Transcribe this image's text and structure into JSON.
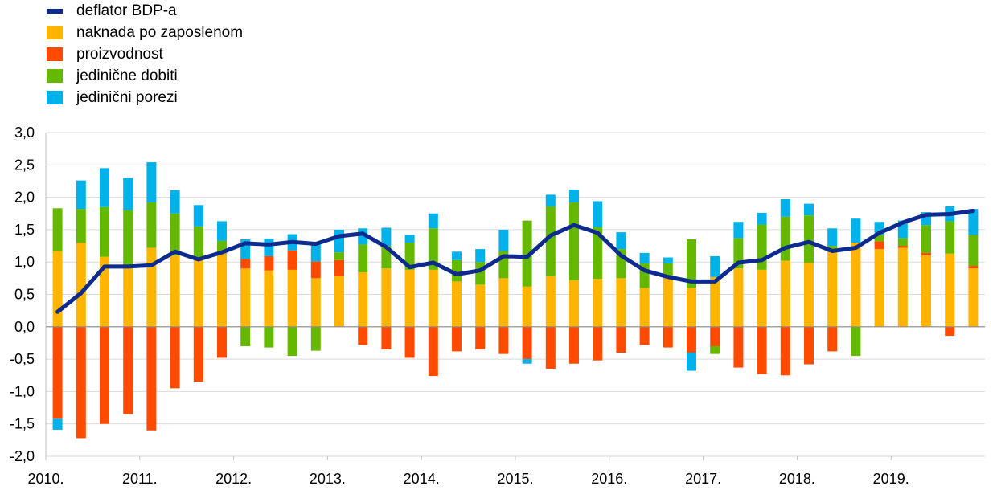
{
  "legend": {
    "items": [
      {
        "label": "deflator BDP-a",
        "color": "#0d2b8e",
        "kind": "line"
      },
      {
        "label": "naknada po zaposlenom",
        "color": "#ffb400",
        "kind": "bar"
      },
      {
        "label": "proizvodnost",
        "color": "#ff4b00",
        "kind": "bar"
      },
      {
        "label": "jedinične dobiti",
        "color": "#65b800",
        "kind": "bar"
      },
      {
        "label": "jedinični porezi",
        "color": "#00b1ea",
        "kind": "bar"
      }
    ]
  },
  "chart_data": {
    "type": "bar",
    "stacked": true,
    "title": "",
    "xlabel": "",
    "ylabel": "",
    "ylim": [
      -2.0,
      3.0
    ],
    "y_ticks": [
      "-2,0",
      "-1,5",
      "-1,0",
      "-0,5",
      "0,0",
      "0,5",
      "1,0",
      "1,5",
      "2,0",
      "2,5",
      "3,0"
    ],
    "x_tick_labels": [
      "2010.",
      "2011.",
      "2012.",
      "2013.",
      "2014.",
      "2015.",
      "2016.",
      "2017.",
      "2018.",
      "2019."
    ],
    "grid": true,
    "legend_position": "top-left",
    "categories": [
      "2010Q1",
      "2010Q2",
      "2010Q3",
      "2010Q4",
      "2011Q1",
      "2011Q2",
      "2011Q3",
      "2011Q4",
      "2012Q1",
      "2012Q2",
      "2012Q3",
      "2012Q4",
      "2013Q1",
      "2013Q2",
      "2013Q3",
      "2013Q4",
      "2014Q1",
      "2014Q2",
      "2014Q3",
      "2014Q4",
      "2015Q1",
      "2015Q2",
      "2015Q3",
      "2015Q4",
      "2016Q1",
      "2016Q2",
      "2016Q3",
      "2016Q4",
      "2017Q1",
      "2017Q2",
      "2017Q3",
      "2017Q4",
      "2018Q1",
      "2018Q2",
      "2018Q3",
      "2018Q4",
      "2019Q1",
      "2019Q2",
      "2019Q3",
      "2019Q4"
    ],
    "series": [
      {
        "name": "naknada po zaposlenom",
        "color": "#ffb400",
        "values": [
          1.17,
          1.3,
          1.08,
          0.9,
          1.22,
          1.1,
          1.03,
          1.13,
          0.9,
          0.87,
          0.88,
          0.75,
          0.78,
          0.84,
          0.9,
          0.88,
          0.88,
          0.7,
          0.65,
          0.75,
          0.62,
          0.78,
          0.72,
          0.74,
          0.75,
          0.6,
          0.75,
          0.6,
          0.77,
          0.9,
          0.88,
          1.02,
          0.99,
          1.15,
          1.3,
          1.2,
          1.22,
          1.1,
          1.13,
          0.9
        ]
      },
      {
        "name": "proizvodnost",
        "color": "#ff4b00",
        "values": [
          -1.42,
          -1.72,
          -1.5,
          -1.35,
          -1.6,
          -0.95,
          -0.85,
          -0.48,
          0.15,
          0.22,
          0.3,
          0.26,
          0.25,
          -0.28,
          -0.35,
          -0.48,
          -0.76,
          -0.38,
          -0.35,
          -0.42,
          -0.5,
          -0.65,
          -0.57,
          -0.52,
          -0.4,
          -0.28,
          -0.32,
          -0.4,
          -0.3,
          -0.63,
          -0.73,
          -0.75,
          -0.58,
          -0.38,
          0,
          0.12,
          0.03,
          0.04,
          -0.14,
          0.04
        ]
      },
      {
        "name": "jedinične dobiti",
        "color": "#65b800",
        "values": [
          0.66,
          0.52,
          0.77,
          0.9,
          0.7,
          0.65,
          0.52,
          0.2,
          -0.3,
          -0.32,
          -0.45,
          -0.37,
          0.12,
          0.43,
          0.35,
          0.42,
          0.64,
          0.33,
          0.35,
          0.42,
          1.02,
          1.08,
          1.2,
          0.8,
          0.45,
          0.38,
          0.23,
          0.75,
          -0.12,
          0.47,
          0.7,
          0.68,
          0.73,
          0.1,
          -0.45,
          0.1,
          0.12,
          0.43,
          0.5,
          0.48
        ]
      },
      {
        "name": "jedinični porezi",
        "color": "#00b1ea",
        "values": [
          -0.17,
          0.44,
          0.6,
          0.5,
          0.62,
          0.36,
          0.33,
          0.3,
          0.3,
          0.27,
          0.25,
          0.3,
          0.35,
          0.25,
          0.28,
          0.12,
          0.23,
          0.13,
          0.2,
          0.33,
          -0.07,
          0.18,
          0.2,
          0.4,
          0.26,
          0.16,
          0.09,
          -0.28,
          0.32,
          0.25,
          0.18,
          0.27,
          0.18,
          0.27,
          0.37,
          0.2,
          0.27,
          0.2,
          0.23,
          0.4
        ]
      },
      {
        "name": "deflator BDP-a",
        "color": "#0d2b8e",
        "type": "line",
        "values": [
          0.23,
          0.52,
          0.93,
          0.93,
          0.95,
          1.16,
          1.04,
          1.15,
          1.29,
          1.27,
          1.31,
          1.28,
          1.4,
          1.44,
          1.23,
          0.92,
          0.99,
          0.81,
          0.87,
          1.09,
          1.08,
          1.41,
          1.57,
          1.45,
          1.1,
          0.87,
          0.77,
          0.7,
          0.7,
          0.99,
          1.03,
          1.22,
          1.31,
          1.17,
          1.22,
          1.45,
          1.61,
          1.73,
          1.74,
          1.79
        ]
      }
    ]
  }
}
